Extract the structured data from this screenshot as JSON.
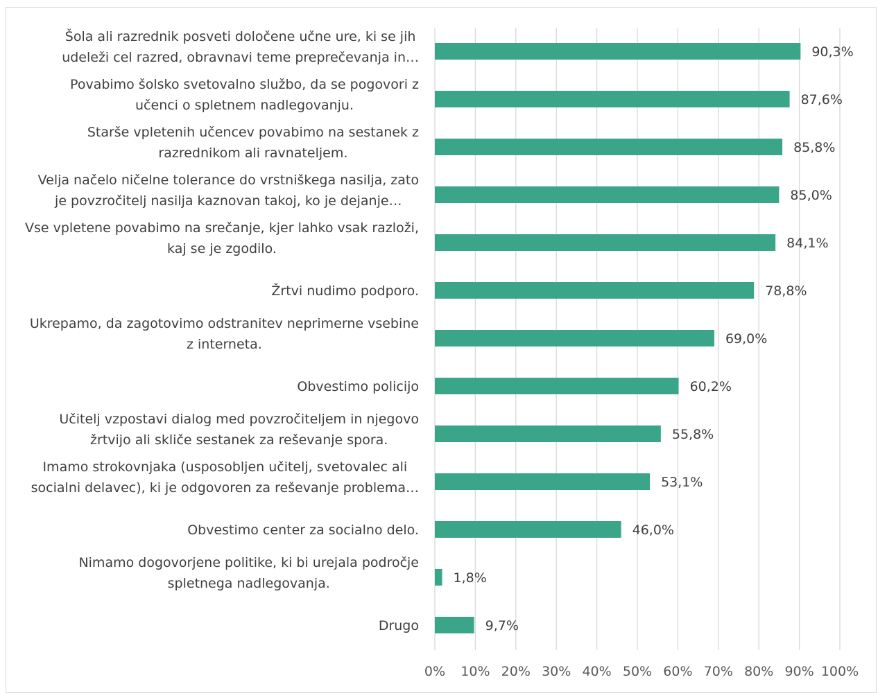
{
  "chart_data": {
    "type": "bar",
    "orientation": "horizontal",
    "categories": [
      [
        "Šola ali razrednik posveti določene učne ure, ki se jih",
        "udeleži cel razred, obravnavi teme preprečevanja in…"
      ],
      [
        "Povabimo šolsko svetovalno službo, da se pogovori z",
        "učenci o spletnem nadlegovanju."
      ],
      [
        "Starše vpletenih učencev povabimo na sestanek z",
        "razrednikom ali ravnateljem."
      ],
      [
        "Velja načelo ničelne tolerance do vrstniškega nasilja, zato",
        "je povzročitelj nasilja kaznovan takoj, ko je dejanje…"
      ],
      [
        "Vse vpletene povabimo na srečanje, kjer lahko vsak razloži,",
        "kaj se je zgodilo."
      ],
      [
        "Žrtvi nudimo podporo."
      ],
      [
        "Ukrepamo, da zagotovimo odstranitev neprimerne vsebine",
        "z interneta."
      ],
      [
        "Obvestimo policijo"
      ],
      [
        "Učitelj vzpostavi dialog med povzročiteljem in njegovo",
        "žrtvijo ali skliče sestanek za reševanje spora."
      ],
      [
        "Imamo strokovnjaka (usposobljen učitelj, svetovalec ali",
        "socialni delavec), ki je odgovoren za reševanje problema…"
      ],
      [
        "Obvestimo center za socialno delo."
      ],
      [
        "Nimamo dogovorjene politike, ki bi urejala področje",
        "spletnega nadlegovanja."
      ],
      [
        "Drugo"
      ]
    ],
    "values": [
      90.3,
      87.6,
      85.8,
      85.0,
      84.1,
      78.8,
      69.0,
      60.2,
      55.8,
      53.1,
      46.0,
      1.8,
      9.7
    ],
    "value_labels": [
      "90,3%",
      "87,6%",
      "85,8%",
      "85,0%",
      "84,1%",
      "78,8%",
      "69,0%",
      "60,2%",
      "55,8%",
      "53,1%",
      "46,0%",
      "1,8%",
      "9,7%"
    ],
    "x_ticks": [
      0,
      10,
      20,
      30,
      40,
      50,
      60,
      70,
      80,
      90,
      100
    ],
    "x_tick_labels": [
      "0%",
      "10%",
      "20%",
      "30%",
      "40%",
      "50%",
      "60%",
      "70%",
      "80%",
      "90%",
      "100%"
    ],
    "xlim": [
      0,
      100
    ],
    "xlabel": "",
    "ylabel": "",
    "title": "",
    "grid": "vertical",
    "legend": "none",
    "bar_color": "#3ba58a",
    "grid_color": "#d9d9d9",
    "text_color": "#404040"
  }
}
